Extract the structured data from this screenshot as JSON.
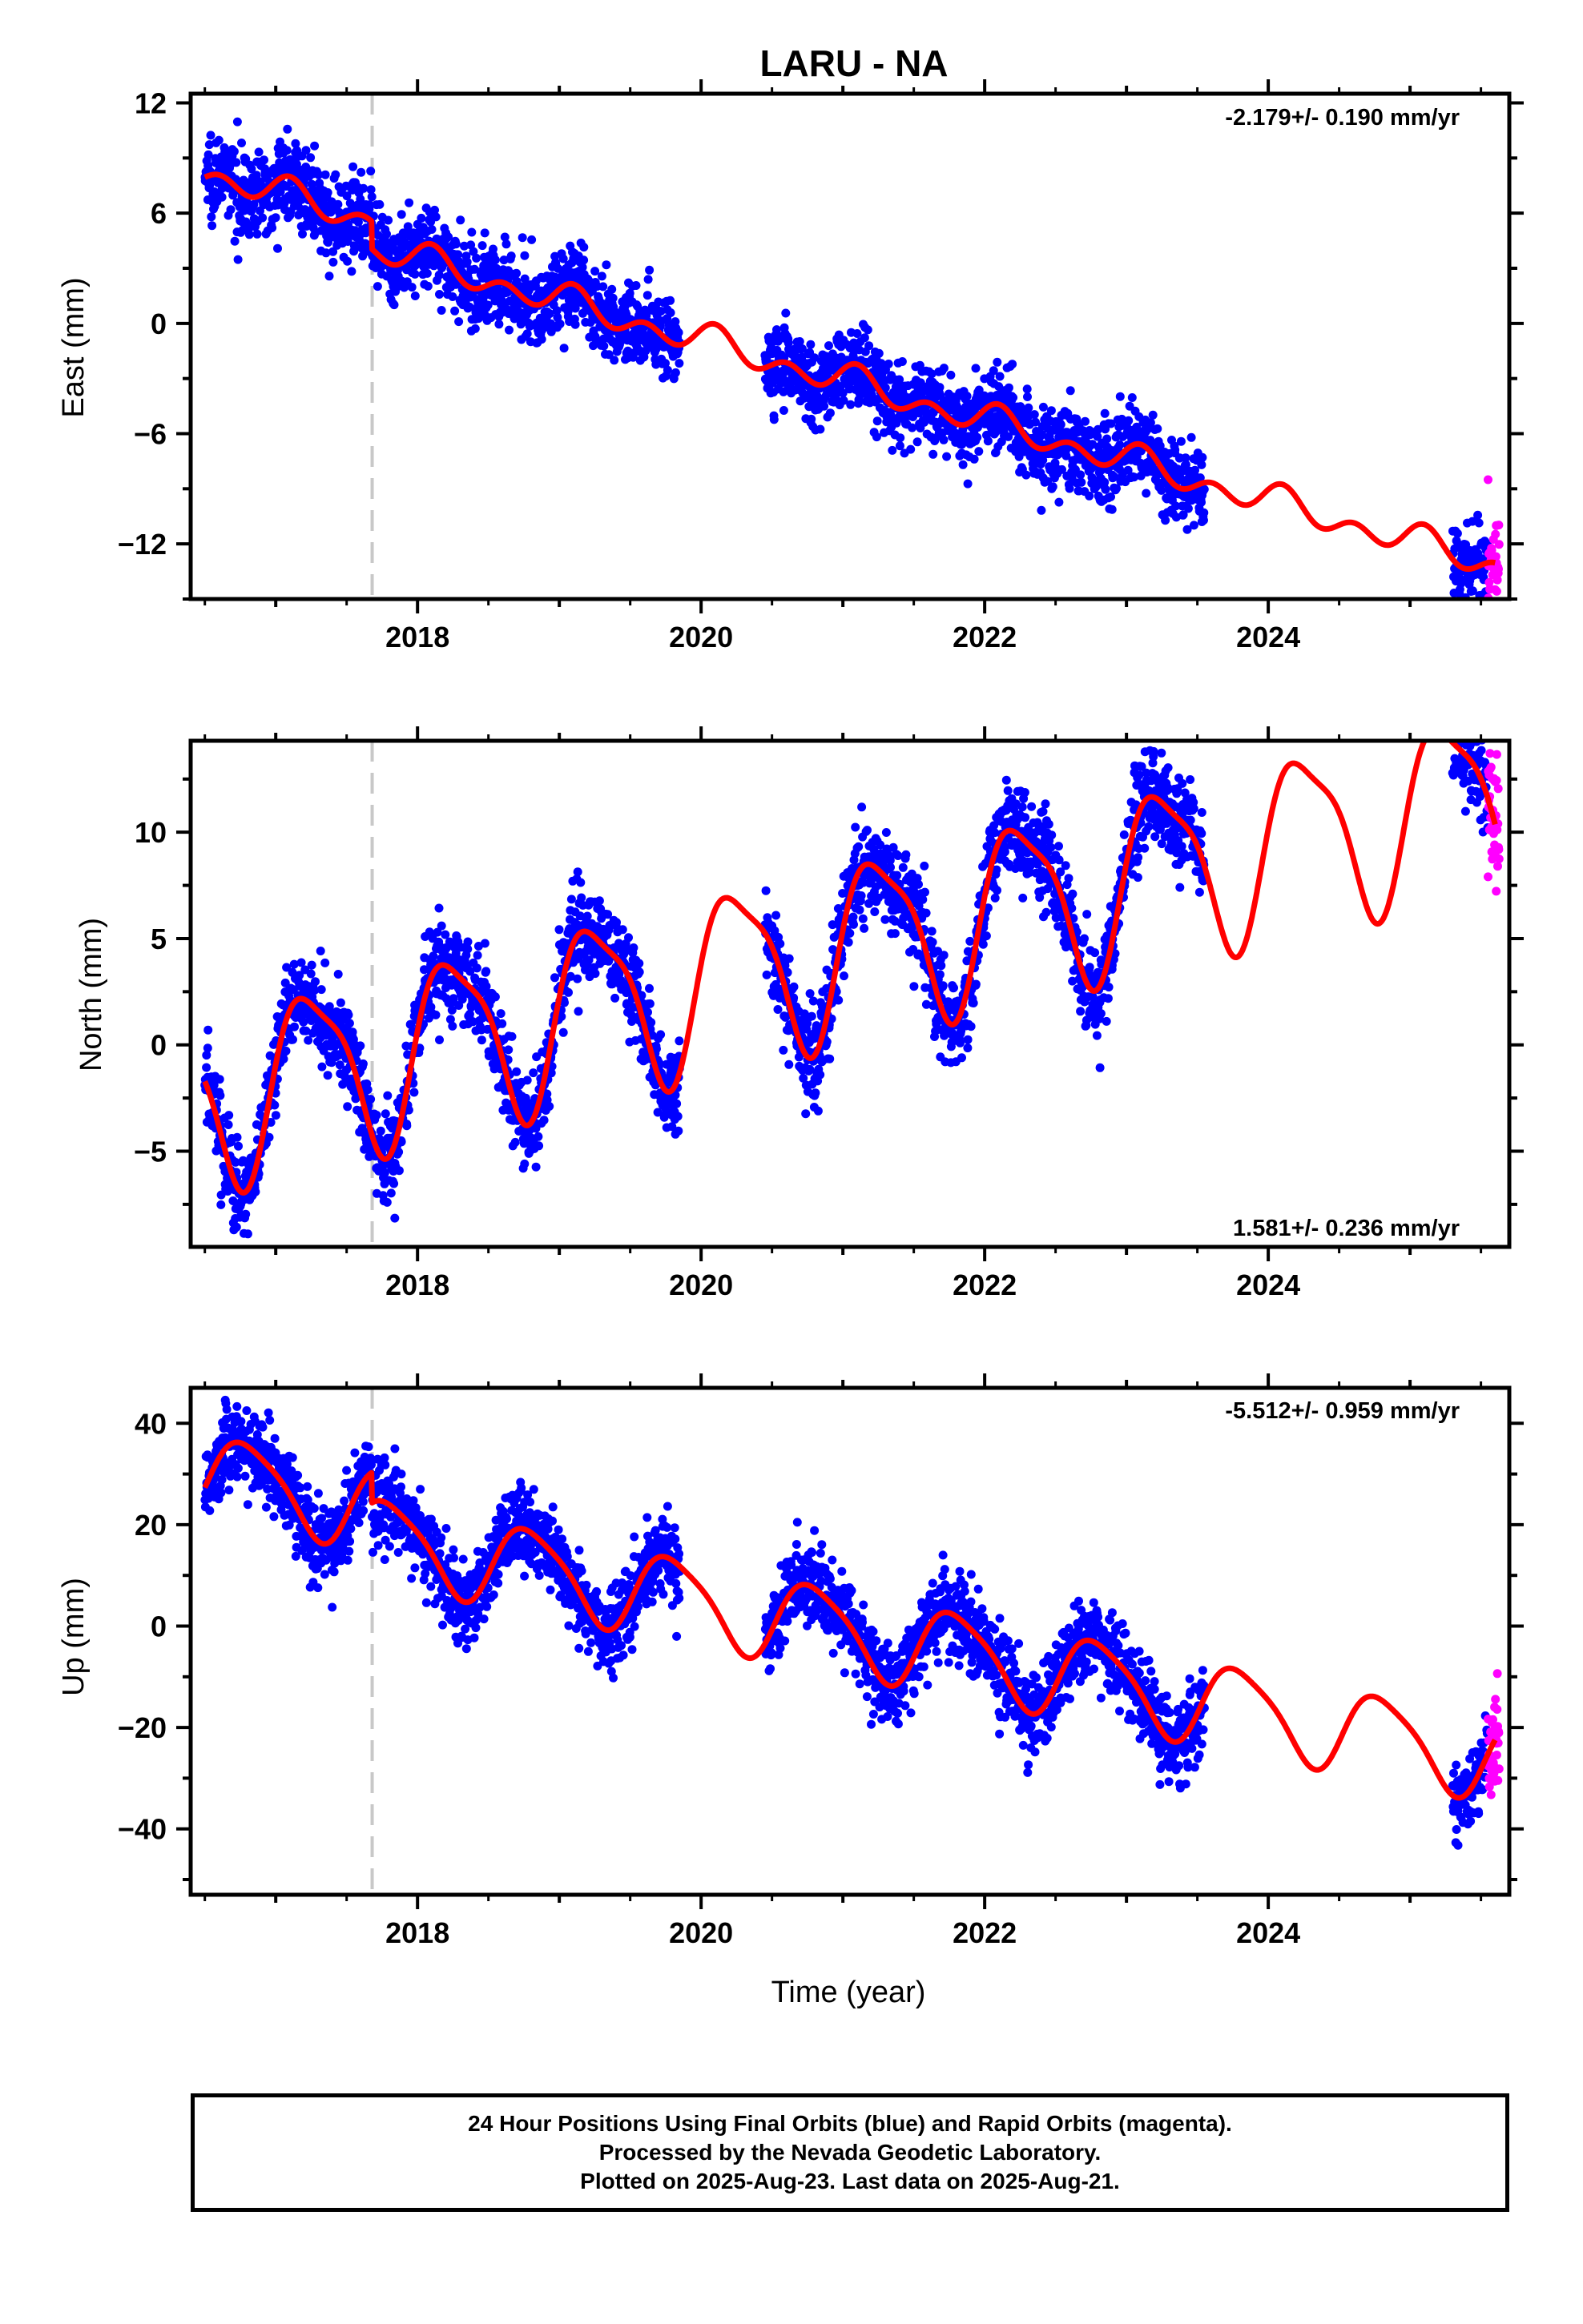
{
  "figure": {
    "title": "LARU - NA",
    "footer": {
      "line1": "24 Hour Positions Using Final Orbits (blue) and Rapid Orbits (magenta).",
      "line2": "Processed by the Nevada Geodetic Laboratory.",
      "line3": "Plotted on 2025-Aug-23. Last data on 2025-Aug-21."
    },
    "colors": {
      "final_orbits": "#0000ff",
      "rapid_orbits": "#ff00ff",
      "model_fit": "#ff0000",
      "event_line": "#c8c8c8"
    }
  },
  "chart_data": [
    {
      "type": "scatter",
      "panel": "east",
      "ylabel": "East (mm)",
      "xlabel": "",
      "rate_label": "-2.179+/- 0.190 mm/yr",
      "rate_position": "top-right",
      "xlim": [
        2016.4,
        2025.7
      ],
      "ylim": [
        -15,
        12.5
      ],
      "x_ticks": [
        2018,
        2020,
        2022,
        2024
      ],
      "x_tick_labels": [
        "2018",
        "2020",
        "2022",
        "2024"
      ],
      "y_ticks": [
        12,
        6,
        0,
        -6,
        -12
      ],
      "y_tick_labels": [
        "12",
        "6",
        "0",
        "−6",
        "−12"
      ],
      "event_line_x": 2017.68,
      "data_segments": [
        [
          2016.5,
          2019.85
        ],
        [
          2020.45,
          2023.55
        ],
        [
          2025.3,
          2025.55
        ]
      ],
      "rapid_segment": [
        2025.55,
        2025.63
      ],
      "series": [
        {
          "kind": "final",
          "points": 2800
        },
        {
          "kind": "rapid",
          "points": 40
        },
        {
          "kind": "fit",
          "line": true
        }
      ],
      "model": {
        "t0": 2016.5,
        "offset": 8.2,
        "rate": -2.179,
        "amp_annual": 0.5,
        "phase_annual": 1.0,
        "amp_semi": 0.6,
        "phase_semi": 0.3,
        "noise": 1.1,
        "steps": [
          [
            2017.68,
            -1.5
          ]
        ]
      },
      "grid": false
    },
    {
      "type": "scatter",
      "panel": "north",
      "ylabel": "North (mm)",
      "xlabel": "",
      "rate_label": "1.581+/- 0.236 mm/yr",
      "rate_position": "bottom-right",
      "xlim": [
        2016.4,
        2025.7
      ],
      "ylim": [
        -9.5,
        14.3
      ],
      "x_ticks": [
        2018,
        2020,
        2022,
        2024
      ],
      "x_tick_labels": [
        "2018",
        "2020",
        "2022",
        "2024"
      ],
      "y_ticks": [
        10,
        5,
        0,
        -5
      ],
      "y_tick_labels": [
        "10",
        "5",
        "0",
        "−5"
      ],
      "event_line_x": 2017.68,
      "data_segments": [
        [
          2016.5,
          2019.85
        ],
        [
          2020.45,
          2023.55
        ],
        [
          2025.3,
          2025.55
        ]
      ],
      "rapid_segment": [
        2025.55,
        2025.63
      ],
      "series": [
        {
          "kind": "final",
          "points": 2800
        },
        {
          "kind": "rapid",
          "points": 40
        },
        {
          "kind": "fit",
          "line": true
        }
      ],
      "model": {
        "t0": 2016.5,
        "offset": -2.5,
        "rate": 1.581,
        "amp_annual": 4.0,
        "phase_annual": 0.0,
        "amp_semi": 1.0,
        "phase_semi": 0.9,
        "noise": 1.1,
        "steps": []
      },
      "grid": false
    },
    {
      "type": "scatter",
      "panel": "up",
      "ylabel": "Up (mm)",
      "xlabel": "Time (year)",
      "rate_label": "-5.512+/- 0.959 mm/yr",
      "rate_position": "top-right",
      "xlim": [
        2016.4,
        2025.7
      ],
      "ylim": [
        -53,
        47
      ],
      "x_ticks": [
        2018,
        2020,
        2022,
        2024
      ],
      "x_tick_labels": [
        "2018",
        "2020",
        "2022",
        "2024"
      ],
      "y_ticks": [
        40,
        20,
        0,
        -20,
        -40
      ],
      "y_tick_labels": [
        "40",
        "20",
        "0",
        "−20",
        "−40"
      ],
      "event_line_x": 2017.68,
      "data_segments": [
        [
          2016.5,
          2019.85
        ],
        [
          2020.45,
          2023.55
        ],
        [
          2025.3,
          2025.55
        ]
      ],
      "rapid_segment": [
        2025.55,
        2025.63
      ],
      "series": [
        {
          "kind": "final",
          "points": 2800
        },
        {
          "kind": "rapid",
          "points": 40
        },
        {
          "kind": "fit",
          "line": true
        }
      ],
      "model": {
        "t0": 2016.5,
        "offset": 30.0,
        "rate": -5.512,
        "amp_annual": 8.0,
        "phase_annual": 2.8,
        "amp_semi": 1.5,
        "phase_semi": 0.0,
        "noise": 4.0,
        "steps": [
          [
            2017.68,
            -6.0
          ]
        ]
      },
      "grid": false
    }
  ]
}
